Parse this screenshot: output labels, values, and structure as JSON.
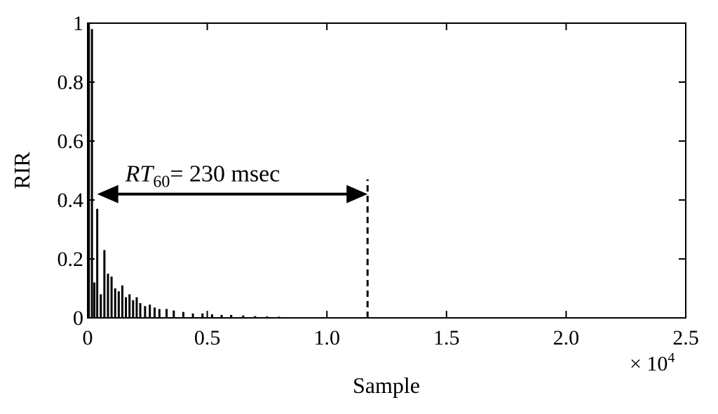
{
  "chart_data": {
    "type": "line",
    "title": "",
    "xlabel": "Sample",
    "ylabel": "RIR",
    "x_multiplier_label": "× 10",
    "x_multiplier_exp": "4",
    "xlim": [
      0,
      2.5
    ],
    "ylim": [
      0,
      1
    ],
    "x_ticks": [
      {
        "value": 0,
        "label": "0"
      },
      {
        "value": 0.5,
        "label": "0.5"
      },
      {
        "value": 1.0,
        "label": "1.0"
      },
      {
        "value": 1.5,
        "label": "1.5"
      },
      {
        "value": 2.0,
        "label": "2.0"
      },
      {
        "value": 2.5,
        "label": "2.5"
      }
    ],
    "y_ticks": [
      {
        "value": 0,
        "label": "0"
      },
      {
        "value": 0.2,
        "label": "0.2"
      },
      {
        "value": 0.4,
        "label": "0.4"
      },
      {
        "value": 0.6,
        "label": "0.6"
      },
      {
        "value": 0.8,
        "label": "0.8"
      },
      {
        "value": 1,
        "label": "1"
      }
    ],
    "grid": false,
    "series": [
      {
        "color": "#000000",
        "x": [
          0.005,
          0.018,
          0.028,
          0.04,
          0.055,
          0.07,
          0.085,
          0.1,
          0.115,
          0.13,
          0.145,
          0.16,
          0.175,
          0.19,
          0.205,
          0.22,
          0.24,
          0.26,
          0.28,
          0.3,
          0.33,
          0.36,
          0.4,
          0.44,
          0.48,
          0.52,
          0.56,
          0.6,
          0.65,
          0.7,
          0.75,
          0.8
        ],
        "y": [
          1.0,
          0.98,
          0.12,
          0.37,
          0.08,
          0.23,
          0.15,
          0.14,
          0.1,
          0.09,
          0.11,
          0.07,
          0.08,
          0.06,
          0.07,
          0.05,
          0.04,
          0.045,
          0.035,
          0.03,
          0.03,
          0.025,
          0.02,
          0.015,
          0.015,
          0.012,
          0.01,
          0.01,
          0.008,
          0.006,
          0.005,
          0.004
        ]
      }
    ],
    "annotations": [
      {
        "type": "double-arrow",
        "x_start": 0.04,
        "x_end": 1.17,
        "y": 0.42,
        "text": "= 230 msec",
        "symbol_main": "RT",
        "symbol_sub": "60"
      },
      {
        "type": "dashed-vline",
        "x": 1.17,
        "y_top": 0.47
      }
    ]
  }
}
